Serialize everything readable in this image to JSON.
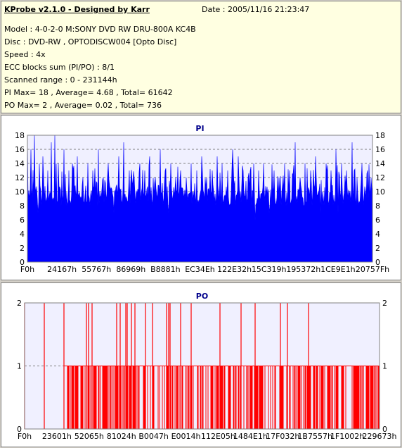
{
  "header": {
    "title": "KProbe v2.1.0 - Designed by Karr",
    "date": "Date : 2005/11/16 21:23:47",
    "lines": [
      "Model : 4-0-2-0 M:SONY    DVD RW DRU-800A  KC4B",
      "Disc : DVD-RW , OPTODISCW004 [Opto Disc]",
      "Speed : 4x",
      "ECC blocks sum (PI/PO) : 8/1",
      "Scanned range : 0 - 231144h",
      "PI Max= 18 , Average= 4.68 , Total= 61642",
      "PO Max= 2 , Average= 0.02 , Total= 736"
    ]
  },
  "colors": {
    "pi": "#0000ff",
    "po": "#ff0000",
    "plot_bg": "#f0f0ff",
    "title": "#00008b"
  },
  "chart_data": [
    {
      "type": "area",
      "title": "PI",
      "ylim": [
        0,
        18
      ],
      "yticks": [
        0,
        2,
        4,
        6,
        8,
        10,
        12,
        14,
        16,
        18
      ],
      "xticks": [
        "F0h",
        "24167h",
        "55767h",
        "86969h",
        "B8881h",
        "EC34Eh",
        "122E32h",
        "15C319h",
        "195372h",
        "1CE9E1h",
        "20757Fh"
      ],
      "grid": true,
      "baseline_range": [
        8,
        11
      ],
      "spikes": [
        [
          0.0,
          18
        ],
        [
          0.01,
          16
        ],
        [
          0.02,
          18
        ],
        [
          0.035,
          14
        ],
        [
          0.045,
          15
        ],
        [
          0.06,
          13
        ],
        [
          0.07,
          17
        ],
        [
          0.08,
          18
        ],
        [
          0.09,
          14
        ],
        [
          0.105,
          16
        ],
        [
          0.12,
          13
        ],
        [
          0.13,
          14
        ],
        [
          0.145,
          15
        ],
        [
          0.16,
          12
        ],
        [
          0.175,
          14
        ],
        [
          0.19,
          13
        ],
        [
          0.205,
          16
        ],
        [
          0.22,
          12
        ],
        [
          0.235,
          14
        ],
        [
          0.25,
          13
        ],
        [
          0.265,
          15
        ],
        [
          0.28,
          17
        ],
        [
          0.295,
          13
        ],
        [
          0.31,
          12
        ],
        [
          0.325,
          14
        ],
        [
          0.34,
          13
        ],
        [
          0.355,
          15
        ],
        [
          0.37,
          12
        ],
        [
          0.385,
          16
        ],
        [
          0.4,
          13
        ],
        [
          0.415,
          14
        ],
        [
          0.43,
          12
        ],
        [
          0.445,
          13
        ],
        [
          0.46,
          12
        ],
        [
          0.475,
          14
        ],
        [
          0.49,
          13
        ],
        [
          0.505,
          15
        ],
        [
          0.52,
          12
        ],
        [
          0.535,
          13
        ],
        [
          0.55,
          15
        ],
        [
          0.565,
          14
        ],
        [
          0.58,
          13
        ],
        [
          0.595,
          16
        ],
        [
          0.61,
          15
        ],
        [
          0.625,
          13
        ],
        [
          0.64,
          12
        ],
        [
          0.655,
          14
        ],
        [
          0.67,
          13
        ],
        [
          0.685,
          14
        ],
        [
          0.7,
          15
        ],
        [
          0.715,
          13
        ],
        [
          0.73,
          12
        ],
        [
          0.745,
          14
        ],
        [
          0.76,
          13
        ],
        [
          0.775,
          17
        ],
        [
          0.79,
          12
        ],
        [
          0.805,
          14
        ],
        [
          0.82,
          13
        ],
        [
          0.835,
          15
        ],
        [
          0.85,
          12
        ],
        [
          0.865,
          14
        ],
        [
          0.88,
          13
        ],
        [
          0.895,
          16
        ],
        [
          0.91,
          14
        ],
        [
          0.925,
          13
        ],
        [
          0.94,
          17
        ],
        [
          0.955,
          12
        ],
        [
          0.97,
          14
        ],
        [
          0.985,
          13
        ],
        [
          0.995,
          12
        ]
      ],
      "dips": [
        [
          0.03,
          7
        ],
        [
          0.25,
          7
        ],
        [
          0.41,
          7
        ],
        [
          0.66,
          6
        ],
        [
          0.7,
          7
        ],
        [
          0.85,
          7
        ],
        [
          0.9,
          7
        ]
      ]
    },
    {
      "type": "bar",
      "title": "PO",
      "ylim": [
        0,
        2
      ],
      "yticks": [
        0,
        1,
        2
      ],
      "xticks": [
        "F0h",
        "23601h",
        "52065h",
        "81024h",
        "B0047h",
        "E0014h",
        "112E05h",
        "1484E1h",
        "17F032h",
        "1B7557h",
        "1F1002h",
        "229673h"
      ],
      "grid": true,
      "values_at_2": [
        0.0,
        0.055,
        0.11,
        0.175,
        0.18,
        0.19,
        0.26,
        0.27,
        0.285,
        0.29,
        0.3,
        0.31,
        0.34,
        0.36,
        0.4,
        0.405,
        0.41,
        0.44,
        0.47,
        0.55,
        0.61,
        0.65,
        0.72,
        0.74,
        0.8
      ],
      "level_1_from": 0.11,
      "level_1_density": 0.55
    }
  ]
}
